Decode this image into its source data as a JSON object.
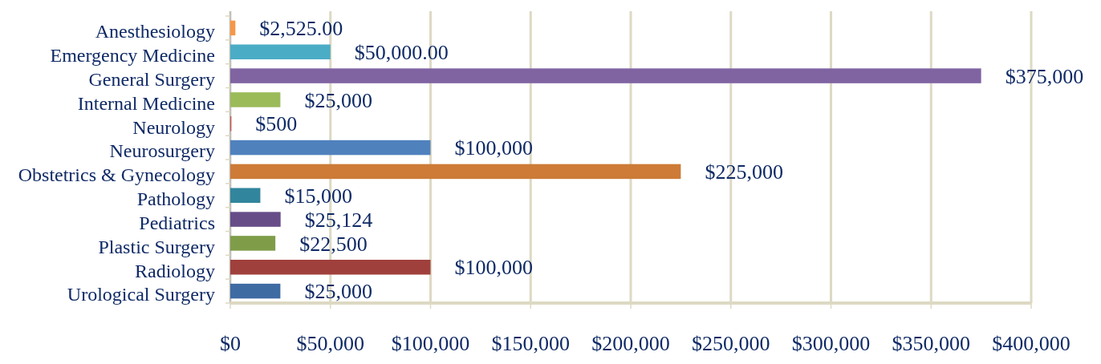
{
  "chart_data": {
    "type": "bar",
    "orientation": "horizontal",
    "categories": [
      "Anesthesiology",
      "Emergency Medicine",
      "General Surgery",
      "Internal Medicine",
      "Neurology",
      "Neurosurgery",
      "Obstetrics & Gynecology",
      "Pathology",
      "Pediatrics",
      "Plastic Surgery",
      "Radiology",
      "Urological Surgery"
    ],
    "values": [
      2525,
      50000,
      375000,
      25000,
      500,
      100000,
      225000,
      15000,
      25124,
      22500,
      100000,
      25000
    ],
    "colors": [
      "#f79646",
      "#4bacc6",
      "#8064a2",
      "#9bbb59",
      "#c0504d",
      "#4f81bd",
      "#cd7b37",
      "#31859c",
      "#664d88",
      "#7f9d48",
      "#a0403d",
      "#3f6ba3"
    ],
    "value_labels": [
      "$2,525.00",
      "$50,000.00",
      "$375,000",
      "$25,000",
      "$500",
      "$100,000",
      "$225,000",
      "$15,000",
      "$25,124",
      "$22,500",
      "$100,000",
      "$25,000"
    ],
    "xlim": [
      0,
      400000
    ],
    "xticks": [
      {
        "value": 0,
        "label": "$0"
      },
      {
        "value": 50000,
        "label": "$50,000"
      },
      {
        "value": 100000,
        "label": "$100,000"
      },
      {
        "value": 150000,
        "label": "$150,000"
      },
      {
        "value": 200000,
        "label": "$200,000"
      },
      {
        "value": 250000,
        "label": "$250,000"
      },
      {
        "value": 300000,
        "label": "$300,000"
      },
      {
        "value": 350000,
        "label": "$350,000"
      },
      {
        "value": 400000,
        "label": "$400,000"
      }
    ],
    "grid": "x"
  }
}
